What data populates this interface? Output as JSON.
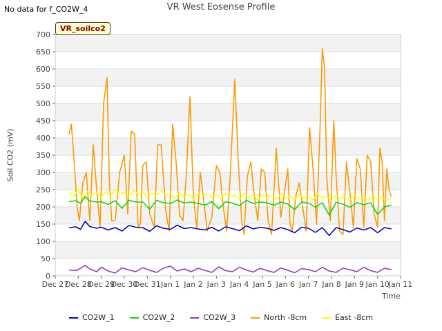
{
  "header": {
    "no_data_text": "No data for f_CO2W_4",
    "site_tag": "VR_soilco2"
  },
  "chart_data": {
    "type": "line",
    "title": "VR West Eosense Profile",
    "xlabel": "Time",
    "ylabel": "Soil CO2 (mV)",
    "ylim": [
      0,
      700
    ],
    "yticks": [
      0,
      50,
      100,
      150,
      200,
      250,
      300,
      350,
      400,
      450,
      500,
      550,
      600,
      650,
      700
    ],
    "xlim": [
      0,
      15
    ],
    "xticks": [
      {
        "pos": 0,
        "label": "Dec 27"
      },
      {
        "pos": 1,
        "label": "Dec 28"
      },
      {
        "pos": 2,
        "label": "Dec 29"
      },
      {
        "pos": 3,
        "label": "Dec 30"
      },
      {
        "pos": 4,
        "label": "Dec 31"
      },
      {
        "pos": 5,
        "label": "Jan 1"
      },
      {
        "pos": 6,
        "label": "Jan 2"
      },
      {
        "pos": 7,
        "label": "Jan 3"
      },
      {
        "pos": 8,
        "label": "Jan 4"
      },
      {
        "pos": 9,
        "label": "Jan 5"
      },
      {
        "pos": 10,
        "label": "Jan 6"
      },
      {
        "pos": 11,
        "label": "Jan 7"
      },
      {
        "pos": 12,
        "label": "Jan 8"
      },
      {
        "pos": 13,
        "label": "Jan 9"
      },
      {
        "pos": 14,
        "label": "Jan 10"
      },
      {
        "pos": 15,
        "label": "Jan 11"
      }
    ],
    "grid": true,
    "legend_position": "bottom",
    "series": [
      {
        "name": "CO2W_1",
        "color": "#0000cc",
        "x": [
          0.6,
          0.9,
          1.1,
          1.3,
          1.5,
          1.8,
          2.0,
          2.3,
          2.6,
          2.9,
          3.2,
          3.5,
          3.8,
          4.1,
          4.4,
          4.7,
          5.0,
          5.3,
          5.6,
          5.9,
          6.2,
          6.5,
          6.8,
          7.1,
          7.4,
          7.7,
          8.0,
          8.3,
          8.6,
          8.9,
          9.2,
          9.5,
          9.8,
          10.1,
          10.4,
          10.7,
          11.0,
          11.3,
          11.6,
          11.9,
          12.2,
          12.5,
          12.8,
          13.1,
          13.4,
          13.7,
          14.0,
          14.3,
          14.6
        ],
        "y": [
          140,
          142,
          135,
          158,
          143,
          138,
          141,
          133,
          140,
          130,
          146,
          141,
          140,
          129,
          145,
          138,
          135,
          147,
          137,
          140,
          136,
          133,
          141,
          130,
          142,
          137,
          131,
          145,
          136,
          141,
          138,
          132,
          140,
          134,
          125,
          141,
          138,
          126,
          140,
          117,
          140,
          134,
          127,
          139,
          133,
          140,
          125,
          140,
          136
        ]
      },
      {
        "name": "CO2W_2",
        "color": "#00dd00",
        "x": [
          0.6,
          0.9,
          1.1,
          1.3,
          1.5,
          1.8,
          2.0,
          2.3,
          2.6,
          2.9,
          3.2,
          3.5,
          3.8,
          4.1,
          4.4,
          4.7,
          5.0,
          5.3,
          5.6,
          5.9,
          6.2,
          6.5,
          6.8,
          7.1,
          7.4,
          7.7,
          8.0,
          8.3,
          8.6,
          8.9,
          9.2,
          9.5,
          9.8,
          10.1,
          10.4,
          10.7,
          11.0,
          11.3,
          11.6,
          11.9,
          12.2,
          12.5,
          12.8,
          13.1,
          13.4,
          13.7,
          14.0,
          14.3,
          14.6
        ],
        "y": [
          215,
          218,
          210,
          230,
          217,
          214,
          215,
          207,
          218,
          196,
          219,
          214,
          214,
          193,
          219,
          212,
          210,
          220,
          211,
          214,
          210,
          205,
          215,
          195,
          215,
          211,
          204,
          219,
          210,
          214,
          212,
          205,
          214,
          208,
          192,
          214,
          211,
          199,
          212,
          176,
          213,
          208,
          199,
          212,
          206,
          212,
          178,
          200,
          205
        ]
      },
      {
        "name": "CO2W_3",
        "color": "#9933cc",
        "x": [
          0.6,
          0.9,
          1.1,
          1.3,
          1.5,
          1.8,
          2.0,
          2.3,
          2.6,
          2.9,
          3.2,
          3.5,
          3.8,
          4.1,
          4.4,
          4.7,
          5.0,
          5.3,
          5.6,
          5.9,
          6.2,
          6.5,
          6.8,
          7.1,
          7.4,
          7.7,
          8.0,
          8.3,
          8.6,
          8.9,
          9.2,
          9.5,
          9.8,
          10.1,
          10.4,
          10.7,
          11.0,
          11.3,
          11.6,
          11.9,
          12.2,
          12.5,
          12.8,
          13.1,
          13.4,
          13.7,
          14.0,
          14.3,
          14.6
        ],
        "y": [
          17,
          15,
          22,
          30,
          20,
          12,
          25,
          14,
          8,
          23,
          17,
          12,
          24,
          16,
          10,
          22,
          28,
          14,
          20,
          12,
          22,
          16,
          10,
          26,
          15,
          12,
          25,
          17,
          11,
          22,
          15,
          10,
          23,
          16,
          9,
          21,
          18,
          12,
          25,
          14,
          10,
          22,
          18,
          12,
          25,
          15,
          10,
          22,
          18
        ]
      },
      {
        "name": "North -8cm",
        "color": "#ff9900",
        "x": [
          0.6,
          0.7,
          0.8,
          0.95,
          1.05,
          1.2,
          1.35,
          1.5,
          1.65,
          1.8,
          1.95,
          2.1,
          2.25,
          2.35,
          2.45,
          2.6,
          2.8,
          3.0,
          3.15,
          3.3,
          3.45,
          3.6,
          3.7,
          3.8,
          3.95,
          4.1,
          4.3,
          4.45,
          4.6,
          4.8,
          4.95,
          5.1,
          5.25,
          5.4,
          5.55,
          5.7,
          5.85,
          6.0,
          6.15,
          6.3,
          6.45,
          6.6,
          6.8,
          7.0,
          7.15,
          7.3,
          7.45,
          7.6,
          7.8,
          7.95,
          8.1,
          8.2,
          8.35,
          8.5,
          8.65,
          8.8,
          8.95,
          9.1,
          9.25,
          9.4,
          9.6,
          9.8,
          9.95,
          10.1,
          10.2,
          10.3,
          10.45,
          10.6,
          10.75,
          10.9,
          11.05,
          11.2,
          11.35,
          11.5,
          11.6,
          11.7,
          11.8,
          11.95,
          12.1,
          12.2,
          12.35,
          12.5,
          12.65,
          12.8,
          12.95,
          13.1,
          13.25,
          13.4,
          13.55,
          13.7,
          13.85,
          14.0,
          14.1,
          14.2,
          14.3,
          14.4,
          14.5,
          14.6
        ],
        "y": [
          410,
          440,
          350,
          200,
          160,
          270,
          300,
          160,
          380,
          250,
          140,
          500,
          575,
          280,
          160,
          160,
          300,
          350,
          180,
          420,
          410,
          140,
          150,
          320,
          330,
          180,
          140,
          380,
          380,
          190,
          130,
          440,
          330,
          175,
          160,
          300,
          520,
          230,
          140,
          300,
          220,
          130,
          170,
          320,
          300,
          200,
          130,
          290,
          570,
          330,
          160,
          120,
          290,
          330,
          230,
          160,
          310,
          300,
          160,
          120,
          370,
          170,
          240,
          310,
          150,
          130,
          230,
          270,
          200,
          130,
          430,
          310,
          150,
          420,
          660,
          600,
          280,
          160,
          450,
          290,
          130,
          120,
          330,
          240,
          140,
          340,
          310,
          140,
          350,
          330,
          180,
          140,
          370,
          330,
          160,
          310,
          250,
          230
        ]
      },
      {
        "name": "East -8cm",
        "color": "#ffff00",
        "x": [
          0.6,
          0.8,
          1.0,
          1.2,
          1.4,
          1.6,
          1.8,
          2.0,
          2.2,
          2.4,
          2.6,
          2.8,
          3.0,
          3.2,
          3.4,
          3.6,
          3.8,
          4.0,
          4.2,
          4.4,
          4.6,
          4.8,
          5.0,
          5.2,
          5.4,
          5.6,
          5.8,
          6.0,
          6.2,
          6.4,
          6.6,
          6.8,
          7.0,
          7.2,
          7.4,
          7.6,
          7.8,
          8.0,
          8.2,
          8.4,
          8.6,
          8.8,
          9.0,
          9.2,
          9.4,
          9.6,
          9.8,
          10.0,
          10.2,
          10.4,
          10.6,
          10.8,
          11.0,
          11.2,
          11.4,
          11.6,
          11.8,
          12.0,
          12.2,
          12.4,
          12.6,
          12.8,
          13.0,
          13.2,
          13.4,
          13.6,
          13.8,
          14.0,
          14.2,
          14.4,
          14.6
        ],
        "y": [
          240,
          230,
          250,
          225,
          245,
          235,
          240,
          228,
          245,
          232,
          250,
          238,
          242,
          230,
          248,
          236,
          244,
          228,
          240,
          233,
          246,
          235,
          238,
          225,
          241,
          230,
          236,
          222,
          240,
          232,
          238,
          228,
          236,
          224,
          239,
          230,
          235,
          221,
          238,
          228,
          234,
          220,
          236,
          226,
          232,
          222,
          238,
          225,
          233,
          220,
          236,
          224,
          232,
          220,
          238,
          226,
          230,
          218,
          236,
          224,
          230,
          220,
          235,
          223,
          228,
          218,
          232,
          222,
          228,
          220,
          225
        ]
      }
    ]
  }
}
